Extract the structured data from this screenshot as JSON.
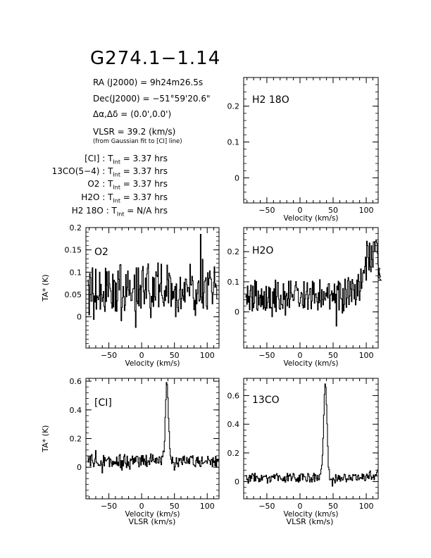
{
  "header": {
    "title": "G274.1−1.14",
    "ra_label": "RA (J2000) =",
    "ra_value": "9h24m26.5s",
    "dec_label": "Dec(J2000) =",
    "dec_value": "−51°59'20.6\"",
    "offset_label": "Δα,Δδ =",
    "offset_value": "(0.0',0.0')",
    "vlsr_label": "VLSR = 39.2 (km/s)",
    "vlsr_note": "(from Gaussian fit to [CI] line)"
  },
  "integration_times": [
    {
      "line": "[CI]",
      "value": "3.37 hrs"
    },
    {
      "line": "13CO(5−4)",
      "value": "3.37 hrs"
    },
    {
      "line": "O2",
      "value": "3.37 hrs"
    },
    {
      "line": "H2O",
      "value": "3.37 hrs"
    },
    {
      "line": "H2 18O",
      "value": "N/A hrs"
    }
  ],
  "chart_data": [
    {
      "type": "line",
      "label": "H2 18O",
      "xlabel": "Velocity (km/s)",
      "ylabel": "",
      "xlim": [
        -85,
        118
      ],
      "ylim": [
        -0.07,
        0.28
      ],
      "xticks": [
        -50,
        0,
        50,
        100
      ],
      "yticks": [
        0,
        0.1,
        0.2
      ],
      "series": []
    },
    {
      "type": "line",
      "label": "O2",
      "xlabel": "Velocity (km/s)",
      "ylabel": "TA* (K)",
      "xlim": [
        -85,
        118
      ],
      "ylim": [
        -0.07,
        0.2
      ],
      "xticks": [
        -50,
        0,
        50,
        100
      ],
      "yticks": [
        0,
        0.05,
        0.1,
        0.15,
        0.2
      ],
      "series": [
        {
          "x_start": -82,
          "x_step": 1,
          "values": [
            0.082,
            0.071,
            0.004,
            0.097,
            0.088,
            0.035,
            0.035,
            0.11,
            0.052,
            -0.006,
            0.047,
            0.033,
            0.107,
            0.017,
            0.047,
            0.043,
            0.038,
            0.047,
            0.1,
            0.017,
            0.073,
            0.05,
            0.034,
            0.043,
            0.057,
            0.023,
            0.012,
            0.109,
            0.034,
            0.101,
            0.071,
            0.045,
            0.102,
            0.074,
            0.064,
            0.058,
            0.031,
            0.019,
            0.096,
            0.022,
            0.082,
            0.079,
            0.013,
            0.076,
            0.012,
            0.036,
            0.103,
            0.084,
            0.06,
            0.116,
            0.117,
            -0.009,
            0.021,
            0.043,
            0.068,
            0.046,
            0.014,
            0.026,
            0.095,
            0.045,
            0.066,
            0.103,
            0.06,
            0.048,
            0.082,
            0.053,
            0.036,
            0.037,
            0.055,
            0.063,
            0.063,
            0.094,
            0.013,
            -0.024,
            0.11,
            0.035,
            0.029,
            0.11,
            0.024,
            0.062,
            0.071,
            0.019,
            0.067,
            0.104,
            0.113,
            0.056,
            0.029,
            0.06,
            0.087,
            0.041,
            0.096,
            0.109,
            0.119,
            0.058,
            0.052,
            0.02,
            -0.002,
            0.046,
            0.033,
            0.089,
            0.023,
            0.087,
            0.045,
            0.037,
            0.101,
            0.093,
            0.09,
            0.121,
            0.022,
            0.072,
            0.056,
            0.075,
            0.118,
            0.048,
            0.042,
            0.032,
            0.024,
            0.059,
            0.036,
            0.069,
            0.046,
            0.116,
            0.083,
            0.031,
            0.098,
            0.092,
            0.087,
            0.023,
            0.075,
            0.039,
            0.057,
            0.042,
            0.061,
            0.068,
            -0.0,
            0.074,
            0.037,
            0.021,
            0.011,
            0.039,
            0.061,
            0.089,
            0.018,
            0.041,
            0.062,
            0.047,
            0.037,
            0.077,
            0.033,
            0.085,
            0.084,
            0.072,
            0.056,
            0.066,
            0.065,
            0.047,
            0.118,
            0.072,
            0.071,
            0.091,
            0.081,
            0.042,
            0.016,
            0.037,
            0.003,
            0.061,
            0.029,
            0.052,
            0.077,
            0.081,
            0.035,
            0.038,
            0.185,
            0.044,
            0.031,
            0.129,
            0.019,
            0.054,
            0.079,
            0.082,
            0.088,
            0.024,
            0.017,
            0.099,
            0.071,
            0.086,
            0.103,
            0.088,
            0.084,
            0.055,
            0.029,
            0.053,
            0.077,
            0.112,
            0.066,
            0.074,
            0.067,
            0.041
          ]
        }
      ]
    },
    {
      "type": "line",
      "label": "H2O",
      "xlabel": "Velocity (km/s)",
      "ylabel": "",
      "xlim": [
        -85,
        118
      ],
      "ylim": [
        -0.12,
        0.28
      ],
      "xticks": [
        -50,
        0,
        50,
        100
      ],
      "yticks": [
        0,
        0.1,
        0.2
      ],
      "series": [
        {
          "x_start": -82,
          "x_step": 1,
          "values": [
            0.049,
            0.057,
            0.025,
            0.086,
            0.032,
            0.052,
            0.007,
            0.071,
            0.089,
            0.049,
            0.003,
            0.086,
            0.014,
            0.029,
            0.105,
            0.053,
            0.101,
            0.009,
            0.005,
            0.07,
            0.023,
            0.047,
            0.056,
            0.017,
            0.077,
            0.023,
            0.053,
            0.009,
            0.068,
            0.015,
            0.005,
            0.085,
            0.012,
            0.032,
            0.048,
            0.083,
            0.013,
            0.079,
            0.013,
            0.015,
            -0.016,
            0.067,
            0.028,
            0.077,
            0.015,
            0.106,
            0.001,
            0.051,
            0.097,
            0.098,
            0.042,
            0.012,
            0.008,
            0.056,
            0.025,
            0.024,
            0.011,
            0.094,
            0.041,
            0.068,
            -0.011,
            0.053,
            0.062,
            0.02,
            0.044,
            0.102,
            0.014,
            0.042,
            0.103,
            0.063,
            0.049,
            0.058,
            0.037,
            0.04,
            0.07,
            0.087,
            0.101,
            0.081,
            0.071,
            0.077,
            0.03,
            0.018,
            0.029,
            0.048,
            0.065,
            0.06,
            0.022,
            0.013,
            0.101,
            0.015,
            0.043,
            0.057,
            0.068,
            0.097,
            0.008,
            0.045,
            0.057,
            0.077,
            0.078,
            0.01,
            0.036,
            0.102,
            0.058,
            0.097,
            0.029,
            0.057,
            0.061,
            0.048,
            0.033,
            0.006,
            0.064,
            0.03,
            0.107,
            0.037,
            0.016,
            0.074,
            0.041,
            0.023,
            0.068,
            0.044,
            0.039,
            0.063,
            0.052,
            0.081,
            0.046,
            0.093,
            0.094,
            0.009,
            0.056,
            0.058,
            0.07,
            0.036,
            0.062,
            0.039,
            0.093,
            0.03,
            0.059,
            -0.047,
            0.086,
            0.073,
            0.102,
            0.006,
            0.097,
            0.092,
            0.045,
            0.042,
            -0.004,
            0.078,
            0.003,
            0.025,
            0.109,
            0.075,
            0.015,
            0.046,
            0.104,
            0.114,
            0.024,
            0.053,
            0.102,
            0.076,
            0.034,
            0.108,
            0.095,
            0.073,
            0.043,
            0.091,
            0.023,
            0.041,
            0.106,
            0.053,
            0.125,
            0.101,
            0.038,
            0.069,
            0.143,
            0.078,
            0.099,
            0.13,
            0.138,
            0.128,
            0.151,
            0.182,
            0.105,
            0.235,
            0.22,
            0.18,
            0.139,
            0.229,
            0.15,
            0.133,
            0.22,
            0.174,
            0.148,
            0.232,
            0.233,
            0.202,
            0.234,
            0.237,
            0.229,
            0.195,
            0.158,
            0.153,
            0.121,
            0.145,
            0.116,
            0.105
          ]
        }
      ]
    },
    {
      "type": "line",
      "label": "[CI]",
      "xlabel": "Velocity (km/s)",
      "ylabel": "TA* (K)",
      "xlim": [
        -85,
        118
      ],
      "ylim": [
        -0.22,
        0.62
      ],
      "xticks": [
        -50,
        0,
        50,
        100
      ],
      "yticks": [
        0,
        0.2,
        0.4,
        0.6
      ],
      "series": [
        {
          "x_start": -82,
          "x_step": 1,
          "values": [
            0.078,
            0.035,
            0.056,
            0.079,
            0.008,
            0.08,
            0.089,
            0.046,
            0.03,
            0.003,
            0.027,
            0.059,
            0.117,
            0.037,
            0.029,
            0.029,
            0.013,
            0.018,
            0.012,
            0.011,
            0.046,
            0.021,
            -0.04,
            0.035,
            0.083,
            0.009,
            0.068,
            0.046,
            0.044,
            0.053,
            0.056,
            0.062,
            0.072,
            0.003,
            0.06,
            0.052,
            0.03,
            0.006,
            0.043,
            0.019,
            0.039,
            0.024,
            0.038,
            0.022,
            0.072,
            0.014,
            0.036,
            0.01,
            0.081,
            0.09,
            -0.004,
            0.046,
            -0.021,
            0.047,
            0.009,
            0.074,
            0.089,
            0.031,
            0.024,
            -0.003,
            0.078,
            0.012,
            0.039,
            0.005,
            -0.014,
            0.058,
            0.046,
            0.055,
            0.079,
            0.022,
            0.061,
            0.032,
            0.068,
            0.04,
            0.077,
            0.077,
            0.073,
            0.031,
            0.002,
            0.066,
            0.065,
            0.015,
            0.081,
            0.04,
            0.082,
            0.02,
            0.059,
            0.041,
            0.014,
            0.084,
            0.004,
            0.033,
            0.046,
            0.042,
            0.018,
            0.066,
            0.094,
            0.038,
            0.046,
            0.087,
            0.055,
            0.04,
            0.036,
            0.062,
            0.027,
            0.066,
            0.057,
            0.032,
            0.028,
            0.074,
            0.069,
            0.036,
            0.017,
            0.078,
            0.072,
            0.113,
            0.107,
            0.182,
            0.348,
            0.471,
            0.591,
            0.575,
            0.485,
            0.341,
            0.248,
            0.131,
            0.079,
            0.055,
            0.025,
            0.071,
            0.034,
            0.032,
            -0.021,
            0.003,
            0.032,
            0.068,
            0.022,
            0.03,
            0.003,
            0.063,
            0.045,
            0.058,
            0.061,
            0.031,
            0.018,
            0.073,
            0.048,
            0.079,
            0.034,
            0.031,
            0.027,
            0.069,
            0.043,
            0.028,
            0.06,
            0.025,
            0.07,
            0.077,
            0.072,
            0.065,
            0.081,
            0.02,
            0.015,
            0.011,
            0.003,
            0.048,
            0.067,
            0.032,
            0.072,
            0.025,
            0.045,
            0.009,
            0.004,
            0.047,
            0.073,
            0.024,
            0.028,
            0.033,
            0.033,
            0.043,
            0.045,
            0.043,
            0.027,
            0.077,
            0.057,
            0.049,
            0.044,
            0.018,
            0.051,
            0.056,
            0.003,
            0.068,
            0.034,
            0.044,
            0.009,
            0.077,
            0.002,
            0.056,
            0.045,
            0.057,
            0.05,
            0.051
          ]
        }
      ]
    },
    {
      "type": "line",
      "label": "13CO",
      "xlabel": "Velocity (km/s)",
      "ylabel": "",
      "xlim": [
        -85,
        118
      ],
      "ylim": [
        -0.12,
        0.72
      ],
      "xticks": [
        -50,
        0,
        50,
        100
      ],
      "yticks": [
        0,
        0.2,
        0.4,
        0.6
      ],
      "series": [
        {
          "x_start": -82,
          "x_step": 1,
          "values": [
            0.043,
            0.042,
            0.013,
            0.018,
            -0.012,
            0.03,
            0.045,
            0.002,
            0.041,
            0.022,
            0.056,
            0.052,
            0.044,
            0.003,
            0.059,
            0.005,
            0.034,
            0.039,
            0.027,
            0.023,
            -0.002,
            0.022,
            0.002,
            0.017,
            0.045,
            0.009,
            0.03,
            0.035,
            0.039,
            0.036,
            0.035,
            0.045,
            0.023,
            -0.011,
            0.024,
            0.027,
            0.034,
            -0.003,
            0.005,
            0.038,
            0.032,
            0.039,
            0.029,
            0.049,
            0.02,
            0.041,
            0.047,
            0.056,
            0.04,
            0.007,
            0.038,
            0.042,
            0.031,
            0.017,
            0.019,
            0.012,
            0.005,
            0.027,
            0.006,
            0.035,
            -0.004,
            0.01,
            0.035,
            0.058,
            0.004,
            0.043,
            0.038,
            0.053,
            0.039,
            0.007,
            0.024,
            0.036,
            0.058,
            0.05,
            0.029,
            0.017,
            0.002,
            0.019,
            0.003,
            0.028,
            -0.004,
            0.045,
            0.005,
            0.052,
            0.052,
            0.055,
            0.012,
            0.052,
            0.037,
            0.033,
            0.033,
            0.011,
            0.001,
            0.004,
            0.057,
            0.051,
            0.034,
            -0.003,
            0.013,
            0.028,
            -0.003,
            0.015,
            0.044,
            0.059,
            0.0,
            0.049,
            0.043,
            0.022,
            0.007,
            0.044,
            0.018,
            0.012,
            0.05,
            0.054,
            0.087,
            0.115,
            0.185,
            0.303,
            0.464,
            0.608,
            0.681,
            0.658,
            0.537,
            0.402,
            0.247,
            0.101,
            0.083,
            0.012,
            0.013,
            0.019,
            0.015,
            -0.032,
            0.026,
            0.016,
            0.008,
            -0.01,
            0.05,
            0.031,
            0.003,
            0.019,
            0.044,
            0.015,
            0.039,
            0.002,
            0.024,
            0.029,
            0.01,
            0.013,
            0.031,
            0.052,
            0.048,
            0.017,
            -0.002,
            0.021,
            0.016,
            0.013,
            0.045,
            0.043,
            0.013,
            0.03,
            0.017,
            0.007,
            0.05,
            0.041,
            0.046,
            0.043,
            0.049,
            0.014,
            0.009,
            0.039,
            0.046,
            0.013,
            0.022,
            0.029,
            0.026,
            0.021,
            0.054,
            0.018,
            0.049,
            0.036,
            0.006,
            0.01,
            0.043,
            0.053,
            0.027,
            0.041,
            0.02,
            0.065,
            0.075,
            0.038,
            0.015,
            0.031,
            0.028,
            0.047,
            0.013,
            0.039,
            0.049,
            0.039,
            0.065,
            0.08
          ]
        }
      ]
    }
  ]
}
